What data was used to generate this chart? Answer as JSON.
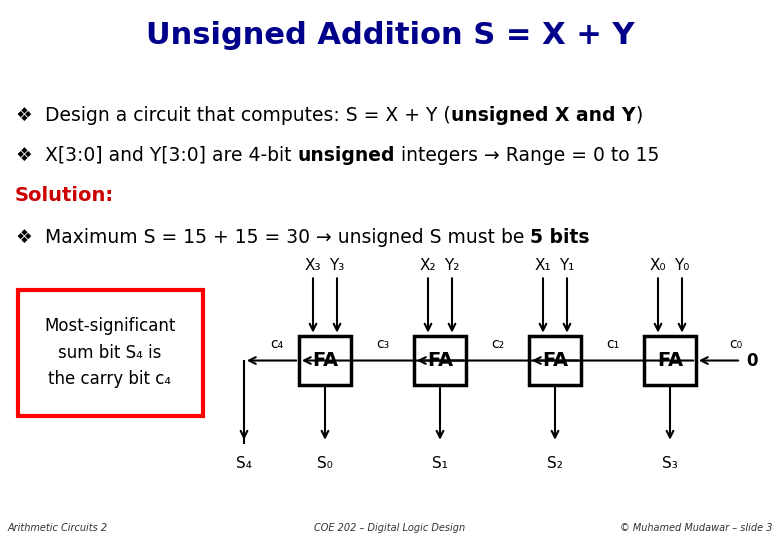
{
  "title": "Unsigned Addition S = X + Y",
  "title_bg": "#c8c8ff",
  "title_color": "#00008B",
  "body_bg": "#ffffff",
  "footer_bg": "#ffffcc",
  "bullet1": "Design a circuit that computes: S = X + Y (",
  "bullet1_bold": "unsigned X and Y",
  "bullet1_end": ")",
  "bullet2_pre": "X[3:0] and Y[3:0] are 4-bit ",
  "bullet2_bold": "unsigned",
  "bullet2_end": " integers → Range = 0 to 15",
  "solution_label": "Solution:",
  "bullet3_pre": "Maximum S = 15 + 15 = 30 → unsigned S must be ",
  "bullet3_bold": "5 bits",
  "fa_labels": [
    "FA",
    "FA",
    "FA",
    "FA"
  ],
  "x_labels": [
    "X₃",
    "Y₃",
    "X₂",
    "Y₂",
    "X₁",
    "Y₁",
    "X₀",
    "Y₀"
  ],
  "s_labels": [
    "S₄",
    "S₃",
    "S₂",
    "S₁",
    "S₀"
  ],
  "c_labels": [
    "c₄",
    "c₃",
    "c₂",
    "c₁",
    "c₀"
  ],
  "box_text": "Most-significant\nsum bit S₄ is\nthe carry bit c₄",
  "footer_left": "Arithmetic Circuits 2",
  "footer_mid": "COE 202 – Digital Logic Design",
  "footer_right": "© Muhamed Mudawar – slide 3",
  "text_color": "#000000",
  "red_color": "#cc0000",
  "dark_blue": "#00008B"
}
